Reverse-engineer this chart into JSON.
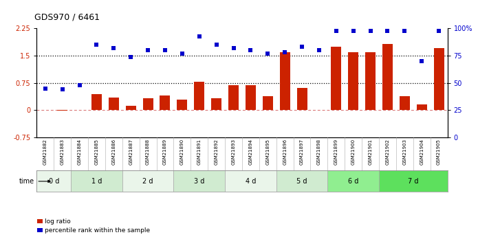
{
  "title": "GDS970 / 6461",
  "samples": [
    "GSM21882",
    "GSM21883",
    "GSM21884",
    "GSM21885",
    "GSM21886",
    "GSM21887",
    "GSM21888",
    "GSM21889",
    "GSM21890",
    "GSM21891",
    "GSM21892",
    "GSM21893",
    "GSM21894",
    "GSM21895",
    "GSM21896",
    "GSM21897",
    "GSM21898",
    "GSM21899",
    "GSM21900",
    "GSM21901",
    "GSM21902",
    "GSM21903",
    "GSM21904",
    "GSM21905"
  ],
  "log_ratio": [
    0.0,
    -0.02,
    0.0,
    0.45,
    0.35,
    0.12,
    0.33,
    0.4,
    0.3,
    0.78,
    0.32,
    0.68,
    0.68,
    0.38,
    1.6,
    0.62,
    0.0,
    1.75,
    1.6,
    1.6,
    1.82,
    0.38,
    0.15,
    1.7
  ],
  "percentile_rank": [
    45,
    44,
    48,
    85,
    82,
    74,
    80,
    80,
    77,
    93,
    85,
    82,
    80,
    77,
    78,
    83,
    80,
    98,
    98,
    98,
    98,
    98,
    70,
    98
  ],
  "time_groups": [
    {
      "label": "0 d",
      "start": 0,
      "end": 2,
      "color": "#eaf5ea"
    },
    {
      "label": "1 d",
      "start": 2,
      "end": 5,
      "color": "#d0ebd0"
    },
    {
      "label": "2 d",
      "start": 5,
      "end": 8,
      "color": "#eaf5ea"
    },
    {
      "label": "3 d",
      "start": 8,
      "end": 11,
      "color": "#d0ebd0"
    },
    {
      "label": "4 d",
      "start": 11,
      "end": 14,
      "color": "#eaf5ea"
    },
    {
      "label": "5 d",
      "start": 14,
      "end": 17,
      "color": "#d0ebd0"
    },
    {
      "label": "6 d",
      "start": 17,
      "end": 20,
      "color": "#90ee90"
    },
    {
      "label": "7 d",
      "start": 20,
      "end": 24,
      "color": "#5de05d"
    }
  ],
  "bar_color": "#cc2200",
  "dot_color": "#0000cc",
  "ylim_left": [
    -0.75,
    2.25
  ],
  "ylim_right": [
    0,
    100
  ],
  "yticks_left": [
    -0.75,
    0.0,
    0.75,
    1.5,
    2.25
  ],
  "ytick_labels_left": [
    "-0.75",
    "0",
    "0.75",
    "1.5",
    "2.25"
  ],
  "yticks_right": [
    0,
    25,
    50,
    75,
    100
  ],
  "ytick_labels_right": [
    "0",
    "25",
    "50",
    "75",
    "100%"
  ],
  "hlines": [
    0.75,
    1.5
  ],
  "background_color": "#ffffff"
}
